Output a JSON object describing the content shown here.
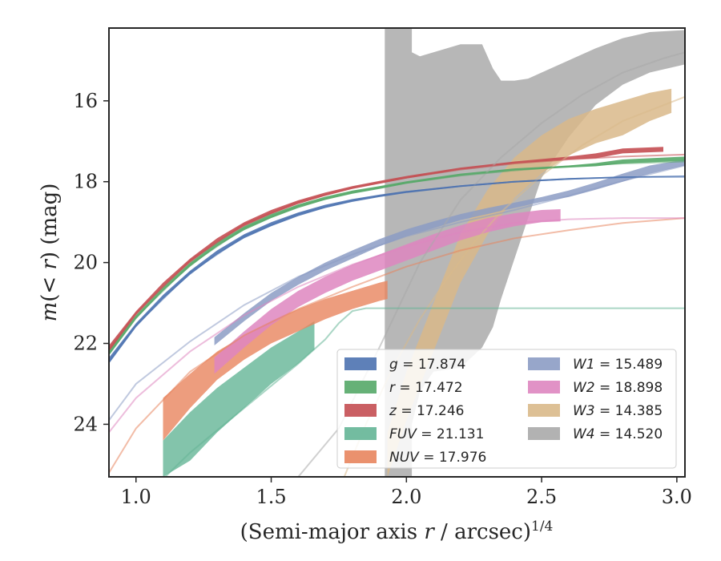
{
  "chart_data": {
    "type": "area",
    "title": "",
    "xlabel": "(Semi-major axis r / arcsec)",
    "xlabel_parts": {
      "pre": "(Semi-major axis ",
      "var": "r",
      "post": " / arcsec)",
      "sup": "1/4"
    },
    "ylabel": "m(< r) (mag)",
    "ylabel_parts": {
      "m": "m",
      "open": "(",
      "lt": "<",
      "r": "r",
      "close": ") (mag)"
    },
    "xlim": [
      0.9,
      3.03
    ],
    "ylim": [
      25.3,
      14.2
    ],
    "y_inverted": true,
    "grid": false,
    "xticks": [
      1.0,
      1.5,
      2.0,
      2.5,
      3.0
    ],
    "xtick_labels": [
      "1.0",
      "1.5",
      "2.0",
      "2.5",
      "3.0"
    ],
    "yticks": [
      16,
      18,
      20,
      22,
      24
    ],
    "ytick_labels": [
      "16",
      "18",
      "20",
      "22",
      "24"
    ],
    "legend_placement": "lower-right",
    "colors": {
      "g": "#4c72b0",
      "r": "#55a868",
      "z": "#c44e52",
      "FUV": "#64b596",
      "NUV": "#e8855e",
      "W1": "#8c9cc4",
      "W2": "#de86c0",
      "W3": "#d9b98a",
      "W4": "#aaaaaa"
    },
    "series": [
      {
        "key": "g",
        "legend_var": "g",
        "legend_value": "17.874",
        "band": {
          "x": [
            0.9,
            1.0,
            1.1,
            1.2,
            1.3,
            1.4,
            1.5,
            1.6,
            1.7,
            1.8,
            1.9,
            2.0,
            2.2,
            2.4,
            2.6,
            2.8,
            3.03
          ],
          "y_low": [
            22.5,
            21.6,
            20.9,
            20.3,
            19.8,
            19.4,
            19.1,
            18.85,
            18.65,
            18.5,
            18.38,
            18.28,
            18.13,
            18.02,
            17.95,
            17.9,
            17.87
          ],
          "y_high": [
            22.35,
            21.5,
            20.8,
            20.2,
            19.7,
            19.3,
            19.0,
            18.76,
            18.57,
            18.43,
            18.32,
            18.23,
            18.09,
            17.98,
            17.91,
            17.87,
            17.85
          ]
        },
        "model": {
          "x": [
            0.9,
            1.0,
            1.2,
            1.4,
            1.6,
            1.8,
            2.0,
            2.2,
            2.4,
            2.6,
            2.8,
            3.03
          ],
          "y": [
            22.45,
            21.55,
            20.25,
            19.35,
            18.8,
            18.46,
            18.25,
            18.11,
            18.0,
            17.93,
            17.89,
            17.88
          ]
        }
      },
      {
        "key": "r",
        "legend_var": "r",
        "legend_value": "17.472",
        "band": {
          "x": [
            0.9,
            1.0,
            1.1,
            1.2,
            1.3,
            1.4,
            1.5,
            1.6,
            1.7,
            1.8,
            1.9,
            2.0,
            2.2,
            2.4,
            2.6,
            2.7,
            2.8,
            3.03
          ],
          "y_low": [
            22.3,
            21.4,
            20.7,
            20.1,
            19.6,
            19.2,
            18.9,
            18.65,
            18.45,
            18.3,
            18.18,
            18.05,
            17.85,
            17.72,
            17.65,
            17.62,
            17.55,
            17.48
          ],
          "y_high": [
            22.15,
            21.3,
            20.6,
            20.0,
            19.5,
            19.1,
            18.8,
            18.56,
            18.37,
            18.22,
            18.11,
            17.99,
            17.8,
            17.67,
            17.6,
            17.54,
            17.45,
            17.38
          ]
        },
        "model": {
          "x": [
            0.9,
            1.0,
            1.2,
            1.4,
            1.6,
            1.8,
            2.0,
            2.2,
            2.4,
            2.6,
            2.8,
            3.03
          ],
          "y": [
            22.25,
            21.35,
            20.05,
            19.15,
            18.6,
            18.26,
            18.03,
            17.85,
            17.72,
            17.62,
            17.55,
            17.5
          ]
        }
      },
      {
        "key": "z",
        "legend_var": "z",
        "legend_value": "17.246",
        "band": {
          "x": [
            0.9,
            1.0,
            1.1,
            1.2,
            1.3,
            1.4,
            1.5,
            1.6,
            1.7,
            1.8,
            1.9,
            2.0,
            2.2,
            2.4,
            2.6,
            2.7,
            2.8,
            2.95
          ],
          "y_low": [
            22.2,
            21.3,
            20.6,
            20.0,
            19.5,
            19.1,
            18.8,
            18.55,
            18.35,
            18.18,
            18.05,
            17.92,
            17.7,
            17.55,
            17.45,
            17.42,
            17.3,
            17.26
          ],
          "y_high": [
            22.05,
            21.2,
            20.5,
            19.9,
            19.4,
            19.0,
            18.7,
            18.46,
            18.27,
            18.11,
            17.98,
            17.86,
            17.65,
            17.5,
            17.38,
            17.3,
            17.18,
            17.14
          ]
        },
        "model": {
          "x": [
            0.9,
            1.0,
            1.2,
            1.4,
            1.6,
            1.8,
            2.0,
            2.2,
            2.4,
            2.6,
            2.8,
            3.03
          ],
          "y": [
            22.15,
            21.25,
            19.95,
            19.05,
            18.5,
            18.15,
            17.9,
            17.7,
            17.55,
            17.45,
            17.38,
            17.33
          ]
        }
      },
      {
        "key": "FUV",
        "legend_var": "FUV",
        "legend_value": "21.131",
        "band": {
          "x": [
            1.1,
            1.2,
            1.3,
            1.4,
            1.5,
            1.6,
            1.66
          ],
          "y_low": [
            25.3,
            24.9,
            24.2,
            23.6,
            23.0,
            22.5,
            22.15
          ],
          "y_high": [
            24.4,
            23.7,
            23.1,
            22.6,
            22.1,
            21.7,
            21.45
          ]
        },
        "model": {
          "x": [
            0.9,
            1.0,
            1.2,
            1.4,
            1.6,
            1.7,
            1.75,
            1.8,
            1.85,
            3.03
          ],
          "y": [
            26.8,
            26.0,
            24.7,
            23.6,
            22.5,
            21.9,
            21.5,
            21.2,
            21.13,
            21.13
          ]
        }
      },
      {
        "key": "NUV",
        "legend_var": "NUV",
        "legend_value": "17.976",
        "band": {
          "x": [
            1.1,
            1.2,
            1.3,
            1.4,
            1.5,
            1.6,
            1.7,
            1.8,
            1.9,
            1.93
          ],
          "y_low": [
            24.4,
            23.6,
            22.9,
            22.4,
            22.0,
            21.7,
            21.4,
            21.15,
            20.95,
            20.9
          ],
          "y_high": [
            23.35,
            22.75,
            22.2,
            21.8,
            21.45,
            21.15,
            20.9,
            20.7,
            20.5,
            20.45
          ]
        },
        "model": {
          "x": [
            0.9,
            1.0,
            1.2,
            1.4,
            1.6,
            1.8,
            2.0,
            2.2,
            2.4,
            2.6,
            2.8,
            3.03
          ],
          "y": [
            25.2,
            24.1,
            22.7,
            21.8,
            21.15,
            20.6,
            20.1,
            19.7,
            19.4,
            19.2,
            19.02,
            18.9
          ]
        }
      },
      {
        "key": "W1",
        "legend_var": "W1",
        "legend_value": "15.489",
        "band": {
          "x": [
            1.29,
            1.4,
            1.5,
            1.6,
            1.7,
            1.8,
            1.9,
            2.0,
            2.1,
            2.2,
            2.3,
            2.4,
            2.5,
            2.6,
            2.7,
            2.8,
            2.9,
            3.03
          ],
          "y_low": [
            22.05,
            21.45,
            20.95,
            20.55,
            20.2,
            19.9,
            19.6,
            19.35,
            19.15,
            18.95,
            18.8,
            18.65,
            18.5,
            18.38,
            18.2,
            18.0,
            17.8,
            17.6
          ],
          "y_high": [
            21.85,
            21.25,
            20.75,
            20.35,
            20.0,
            19.7,
            19.42,
            19.18,
            18.98,
            18.8,
            18.65,
            18.52,
            18.38,
            18.22,
            18.02,
            17.8,
            17.6,
            17.45
          ]
        },
        "model": {
          "x": [
            0.9,
            1.0,
            1.2,
            1.4,
            1.6,
            1.8,
            2.0,
            2.2,
            2.4,
            2.6,
            2.8,
            3.03
          ],
          "y": [
            23.9,
            23.0,
            21.95,
            21.05,
            20.35,
            19.8,
            19.35,
            19.0,
            18.7,
            18.35,
            17.98,
            17.6
          ]
        }
      },
      {
        "key": "W2",
        "legend_var": "W2",
        "legend_value": "18.898",
        "band": {
          "x": [
            1.29,
            1.4,
            1.5,
            1.6,
            1.7,
            1.8,
            1.9,
            2.0,
            2.1,
            2.2,
            2.3,
            2.4,
            2.5,
            2.57
          ],
          "y_low": [
            22.75,
            22.1,
            21.55,
            21.1,
            20.75,
            20.45,
            20.2,
            19.95,
            19.7,
            19.45,
            19.25,
            19.1,
            19.0,
            18.98
          ],
          "y_high": [
            22.35,
            21.7,
            21.15,
            20.7,
            20.35,
            20.05,
            19.8,
            19.55,
            19.3,
            19.08,
            18.9,
            18.78,
            18.7,
            18.68
          ]
        },
        "model": {
          "x": [
            0.9,
            1.0,
            1.2,
            1.4,
            1.6,
            1.8,
            2.0,
            2.2,
            2.4,
            2.6,
            2.8,
            3.03
          ],
          "y": [
            24.2,
            23.35,
            22.2,
            21.3,
            20.6,
            20.05,
            19.6,
            19.25,
            19.02,
            18.93,
            18.9,
            18.9
          ]
        }
      },
      {
        "key": "W3",
        "legend_var": "W3",
        "legend_value": "14.385",
        "band": {
          "x": [
            1.93,
            2.0,
            2.1,
            2.2,
            2.3,
            2.4,
            2.5,
            2.6,
            2.7,
            2.8,
            2.9,
            2.98
          ],
          "y_low": [
            25.3,
            23.9,
            22.2,
            20.5,
            19.3,
            18.4,
            17.8,
            17.35,
            17.05,
            16.85,
            16.5,
            16.3
          ],
          "y_high": [
            24.2,
            22.7,
            21.0,
            19.3,
            18.2,
            17.4,
            16.85,
            16.45,
            16.2,
            16.0,
            15.8,
            15.7
          ]
        },
        "model": {
          "x": [
            1.77,
            1.85,
            1.95,
            2.05,
            2.15,
            2.25,
            2.35,
            2.5,
            2.65,
            2.8,
            3.03
          ],
          "y": [
            25.3,
            24.0,
            22.6,
            21.4,
            20.4,
            19.5,
            18.75,
            17.85,
            17.1,
            16.5,
            15.9
          ]
        }
      },
      {
        "key": "W4",
        "legend_var": "W4",
        "legend_value": "14.520",
        "band": {
          "x": [
            1.92,
            2.02,
            2.02,
            2.05,
            2.1,
            2.2,
            2.28,
            2.32,
            2.35,
            2.4,
            2.45,
            2.5,
            2.6,
            2.7,
            2.8,
            2.9,
            3.03
          ],
          "y_low": [
            25.3,
            25.3,
            24.0,
            23.2,
            22.7,
            22.6,
            22.1,
            21.6,
            20.9,
            19.9,
            18.9,
            17.9,
            16.9,
            16.1,
            15.6,
            15.3,
            15.1
          ],
          "y_high": [
            14.2,
            14.2,
            14.8,
            14.9,
            14.8,
            14.6,
            14.6,
            15.2,
            15.5,
            15.5,
            15.45,
            15.3,
            15.0,
            14.7,
            14.45,
            14.3,
            14.25
          ]
        },
        "model": {
          "x": [
            1.6,
            1.75,
            1.9,
            2.05,
            2.2,
            2.35,
            2.5,
            2.65,
            2.8,
            2.95,
            3.03
          ],
          "y": [
            25.3,
            24.1,
            22.1,
            20.0,
            18.45,
            17.4,
            16.55,
            15.85,
            15.3,
            14.95,
            14.8
          ]
        }
      }
    ],
    "legend_columns": [
      [
        "g",
        "r",
        "z",
        "FUV",
        "NUV"
      ],
      [
        "W1",
        "W2",
        "W3",
        "W4"
      ]
    ]
  }
}
